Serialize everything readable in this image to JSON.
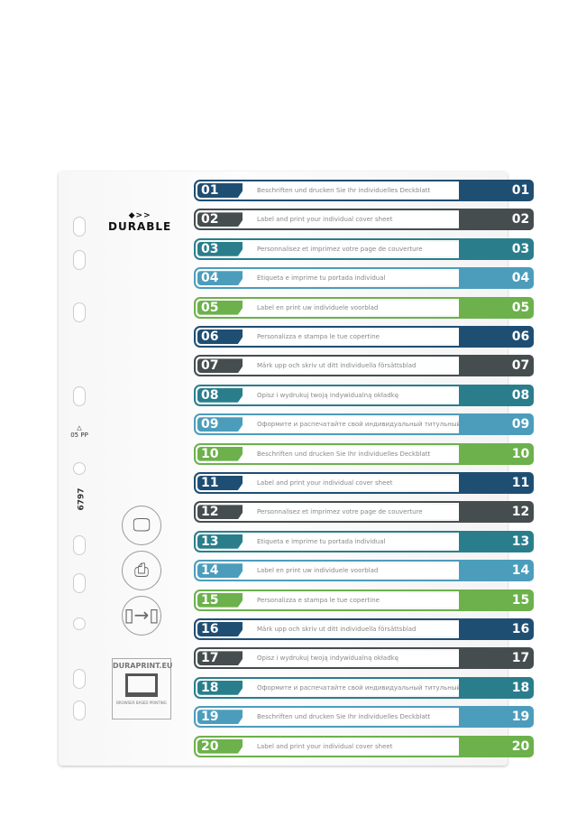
{
  "brand": "DURABLE",
  "product_code": "6797",
  "recycling": {
    "code": "05",
    "material": "PP"
  },
  "duraprint": {
    "title": "DURAPRINT.EU",
    "subtitle": "BROWSER BASED PRINTING"
  },
  "colors": [
    "#1f4e73",
    "#464d4f",
    "#2a7e8c",
    "#4c9dbc",
    "#6cb14b"
  ],
  "icons": [
    "monitor-icon",
    "printer-icon",
    "tab-transfer-icon"
  ],
  "tabs": [
    {
      "num": "01",
      "text": "Beschriften und drucken Sie Ihr individuelles Deckblatt"
    },
    {
      "num": "02",
      "text": "Label and print your individual cover sheet"
    },
    {
      "num": "03",
      "text": "Personnalisez et imprimez votre page de couverture"
    },
    {
      "num": "04",
      "text": "Etiqueta e imprime tu portada individual"
    },
    {
      "num": "05",
      "text": "Label en print uw individuele voorblad"
    },
    {
      "num": "06",
      "text": "Personalizza e stampa le tue copertine"
    },
    {
      "num": "07",
      "text": "Märk upp och skriv ut ditt individuella försättsblad"
    },
    {
      "num": "08",
      "text": "Opisz i wydrukuj twoją indywidualną okładkę"
    },
    {
      "num": "09",
      "text": "Оформите и распечатайте свой индивидуальный титульный лист"
    },
    {
      "num": "10",
      "text": "Beschriften und drucken Sie Ihr individuelles Deckblatt"
    },
    {
      "num": "11",
      "text": "Label and print your individual cover sheet"
    },
    {
      "num": "12",
      "text": "Personnalisez et imprimez votre page de couverture"
    },
    {
      "num": "13",
      "text": "Etiqueta e imprime tu portada individual"
    },
    {
      "num": "14",
      "text": "Label en print uw individuele voorblad"
    },
    {
      "num": "15",
      "text": "Personalizza e stampa le tue copertine"
    },
    {
      "num": "16",
      "text": "Märk upp och skriv ut ditt individuella försättsblad"
    },
    {
      "num": "17",
      "text": "Opisz i wydrukuj twoją indywidualną okładkę"
    },
    {
      "num": "18",
      "text": "Оформите и распечатайте свой индивидуальный титульный лист"
    },
    {
      "num": "19",
      "text": "Beschriften und drucken Sie Ihr individuelles Deckblatt"
    },
    {
      "num": "20",
      "text": "Label and print your individual cover sheet"
    }
  ]
}
